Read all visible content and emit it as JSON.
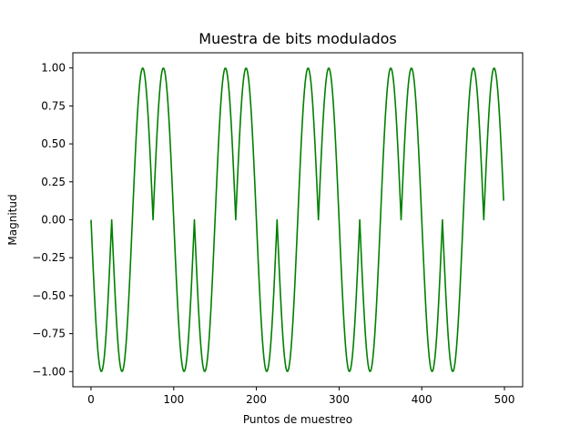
{
  "chart_data": {
    "type": "line",
    "title": "Muestra de bits modulados",
    "xlabel": "Puntos de muestreo",
    "ylabel": "Magnitud",
    "xlim": [
      -22,
      522
    ],
    "ylim": [
      -1.1,
      1.1
    ],
    "xticks": [
      0,
      100,
      200,
      300,
      400,
      500
    ],
    "xtick_labels": [
      "0",
      "100",
      "200",
      "300",
      "400",
      "500"
    ],
    "yticks": [
      -1.0,
      -0.75,
      -0.5,
      -0.25,
      0.0,
      0.25,
      0.5,
      0.75,
      1.0
    ],
    "ytick_labels": [
      "−1.00",
      "−0.75",
      "−0.50",
      "−0.25",
      "0.00",
      "0.25",
      "0.50",
      "0.75",
      "1.00"
    ],
    "grid": false,
    "legend": "none",
    "line_color": "#008000",
    "series": [
      {
        "bits": [
          0,
          1,
          0,
          1,
          0,
          1,
          0,
          1,
          0,
          1
        ],
        "samples_per_bit": 50,
        "cycles_per_bit": 1,
        "waveform": "0 -> -|sin|, 1 -> +|sin| (rectified half-wave per bit segment)",
        "x": [
          0,
          499
        ],
        "extrema": [
          {
            "x": 12,
            "y": -1.0
          },
          {
            "x": 37,
            "y": 1.0
          },
          {
            "x": 62,
            "y": 1.0
          },
          {
            "x": 87,
            "y": -1.0
          }
        ]
      }
    ]
  }
}
